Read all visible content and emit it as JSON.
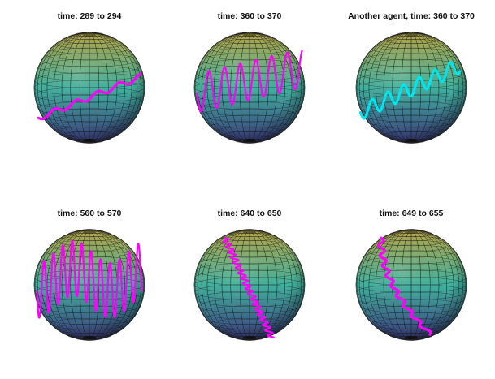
{
  "panels": [
    {
      "title": "time: 289 to 294"
    },
    {
      "title": "time: 360 to 370"
    },
    {
      "title": "Another agent, time: 360 to 370"
    },
    {
      "title": "time: 560 to 570"
    },
    {
      "title": "time: 640 to 650"
    },
    {
      "title": "time: 649 to 655"
    }
  ],
  "colors": {
    "sphere_top": "#b8a845",
    "sphere_middle": "#3fb4a0",
    "sphere_bottom": "#3b3a7e",
    "mesh_line": "#1a1a1a",
    "trajectory_primary": "#ff00ff",
    "trajectory_other_agent": "#00e5ee"
  }
}
